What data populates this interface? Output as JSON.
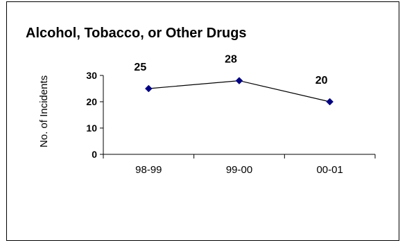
{
  "chart_data": {
    "type": "line",
    "title": "Alcohol, Tobacco, or Other Drugs",
    "ylabel": "No. of Incidents",
    "xlabel": "",
    "categories": [
      "98-99",
      "99-00",
      "00-01"
    ],
    "series": [
      {
        "values": [
          25,
          28,
          20
        ],
        "color": "#000080",
        "line_color": "#000000",
        "marker": "diamond"
      }
    ],
    "data_labels": [
      "25",
      "28",
      "20"
    ],
    "yticks": [
      0,
      10,
      20,
      30
    ],
    "ylim": [
      0,
      30
    ],
    "grid": false,
    "legend": "none"
  }
}
